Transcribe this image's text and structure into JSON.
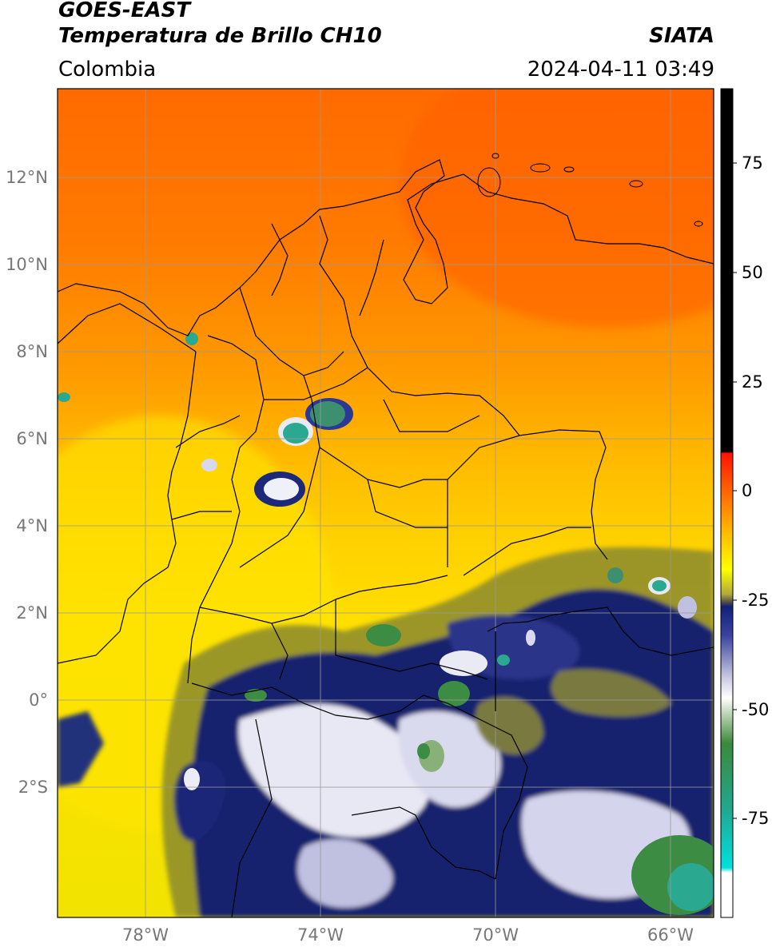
{
  "header": {
    "satellite": "GOES-EAST",
    "product": "Temperatura de Brillo CH10",
    "region": "Colombia",
    "agency": "SIATA",
    "datetime": "2024-04-11 03:49"
  },
  "map": {
    "lat_ticks": [
      "12°N",
      "10°N",
      "8°N",
      "6°N",
      "4°N",
      "2°N",
      "0°",
      "2°S"
    ],
    "lon_ticks": [
      "78°W",
      "74°W",
      "70°W",
      "66°W"
    ],
    "extent": {
      "lon_min": -80.0,
      "lon_max": -65.0,
      "lat_min": -5.0,
      "lat_max": 14.0
    },
    "colors": {
      "warm": "#ff6a00",
      "yellow": "#ffe000",
      "olive": "#8a8a30",
      "navy": "#16206e",
      "white": "#f4f4f8",
      "green": "#3c8c44",
      "teal": "#20b8a0",
      "border": "#000000",
      "grid": "#9a9a9a"
    }
  },
  "colorbar": {
    "ticks": [
      "75",
      "50",
      "25",
      "0",
      "-25",
      "-50",
      "-75"
    ],
    "range": [
      -95,
      90
    ],
    "colors": [
      "#000000",
      "#ff1400",
      "#ff7800",
      "#ffd000",
      "#ffff00",
      "#7a7a40",
      "#12207a",
      "#ffffff",
      "#3a8a3a",
      "#00e0e0",
      "#ffffff"
    ]
  }
}
